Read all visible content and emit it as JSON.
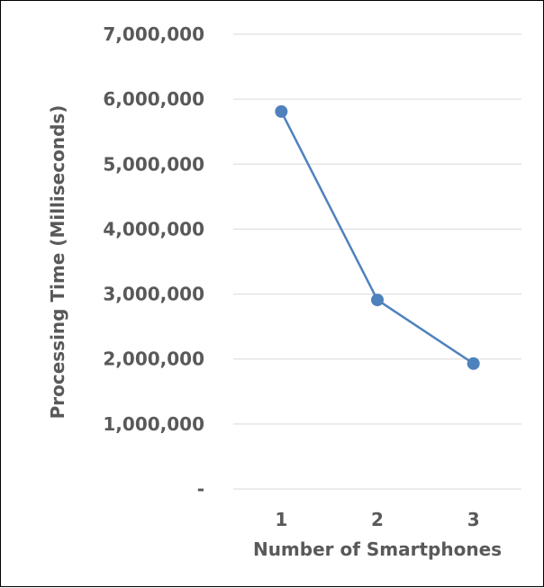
{
  "chart_data": {
    "type": "line",
    "categories": [
      "1",
      "2",
      "3"
    ],
    "values": [
      5810000,
      2910000,
      1930000
    ],
    "xlabel": "Number of Smartphones",
    "ylabel": "Processing Time (Milliseconds)",
    "ylim": [
      0,
      7000000
    ],
    "y_ticks": [
      0,
      1000000,
      2000000,
      3000000,
      4000000,
      5000000,
      6000000,
      7000000
    ],
    "y_tick_labels": [
      "-",
      "1,000,000",
      "2,000,000",
      "3,000,000",
      "4,000,000",
      "5,000,000",
      "6,000,000",
      "7,000,000"
    ],
    "grid": true,
    "legend": "none",
    "series_color": "#4F81BD",
    "grid_color": "#D9D9D9",
    "text_color": "#595959"
  }
}
